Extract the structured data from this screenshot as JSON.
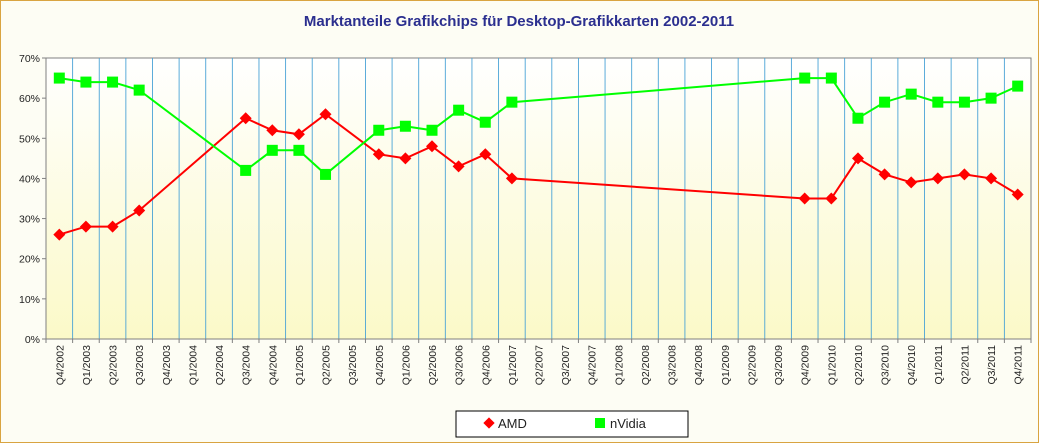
{
  "chart_data": {
    "type": "line",
    "title": "Marktanteile Grafikchips für Desktop-Grafikkarten 2002-2011",
    "xlabel": "",
    "ylabel": "",
    "ylim": [
      0,
      70
    ],
    "y_ticks": [
      "0%",
      "10%",
      "20%",
      "30%",
      "40%",
      "50%",
      "60%",
      "70%"
    ],
    "grid": "vertical",
    "legend_position": "bottom",
    "categories": [
      "Q4/2002",
      "Q1/2003",
      "Q2/2003",
      "Q3/2003",
      "Q4/2003",
      "Q1/2004",
      "Q2/2004",
      "Q3/2004",
      "Q4/2004",
      "Q1/2005",
      "Q2/2005",
      "Q3/2005",
      "Q4/2005",
      "Q1/2006",
      "Q2/2006",
      "Q3/2006",
      "Q4/2006",
      "Q1/2007",
      "Q2/2007",
      "Q3/2007",
      "Q4/2007",
      "Q1/2008",
      "Q2/2008",
      "Q3/2008",
      "Q4/2008",
      "Q1/2009",
      "Q2/2009",
      "Q3/2009",
      "Q4/2009",
      "Q1/2010",
      "Q2/2010",
      "Q3/2010",
      "Q4/2010",
      "Q1/2011",
      "Q2/2011",
      "Q3/2011",
      "Q4/2011"
    ],
    "series": [
      {
        "name": "AMD",
        "color": "#ff0000",
        "marker": "diamond",
        "values": [
          26,
          28,
          28,
          32,
          null,
          null,
          null,
          55,
          52,
          51,
          56,
          null,
          46,
          45,
          48,
          43,
          46,
          40,
          null,
          null,
          null,
          null,
          null,
          null,
          null,
          null,
          null,
          null,
          35,
          35,
          45,
          41,
          39,
          40,
          41,
          40,
          36
        ]
      },
      {
        "name": "nVidia",
        "color": "#00ff00",
        "marker": "square",
        "values": [
          65,
          64,
          64,
          62,
          null,
          null,
          null,
          42,
          47,
          47,
          41,
          null,
          52,
          53,
          52,
          57,
          54,
          59,
          null,
          null,
          null,
          null,
          null,
          null,
          null,
          null,
          null,
          null,
          65,
          65,
          55,
          59,
          61,
          59,
          59,
          60,
          63
        ]
      }
    ]
  }
}
